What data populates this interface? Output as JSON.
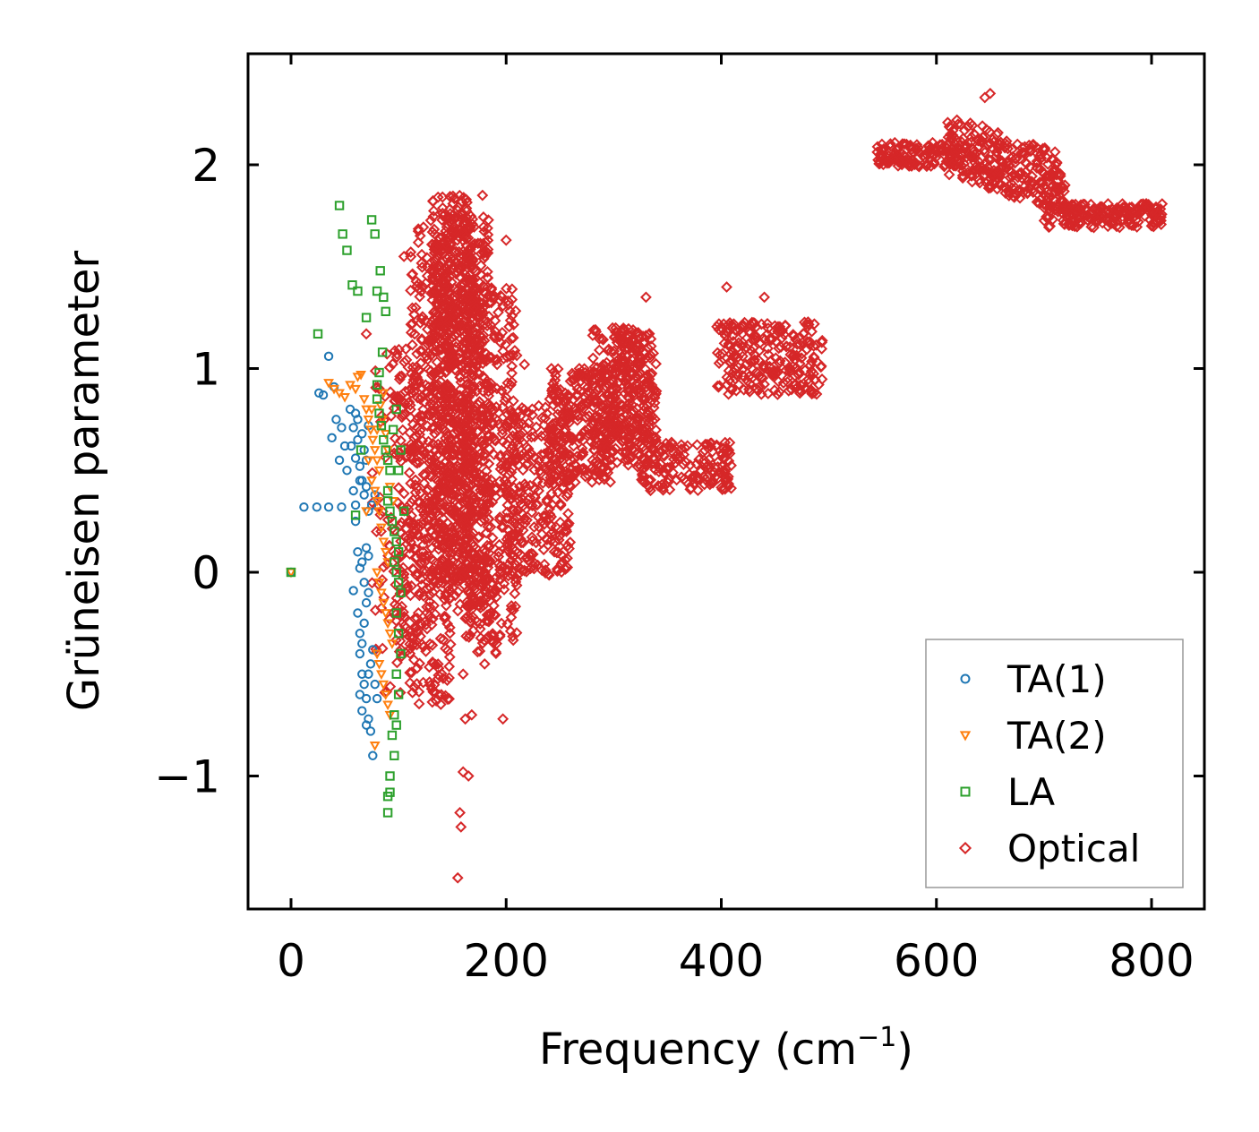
{
  "chart_data": {
    "type": "scatter",
    "title": "",
    "xlabel_main": "Frequency (cm",
    "xlabel_sup": "−1",
    "xlabel_end": ")",
    "ylabel": "Grüneisen parameter",
    "xlim": [
      -40,
      850
    ],
    "ylim": [
      -1.65,
      2.55
    ],
    "xticks": [
      0,
      200,
      400,
      600,
      800
    ],
    "xtick_labels": [
      "0",
      "200",
      "400",
      "600",
      "800"
    ],
    "yticks": [
      -1,
      0,
      1,
      2
    ],
    "ytick_labels": [
      "−1",
      "0",
      "1",
      "2"
    ],
    "legend_position": "lower-right",
    "grid": false,
    "series": [
      {
        "name": "TA(1)",
        "marker": "circle",
        "color": "#1f77b4",
        "points": [
          [
            0,
            0
          ],
          [
            12,
            0.32
          ],
          [
            24,
            0.32
          ],
          [
            35,
            0.32
          ],
          [
            47,
            0.32
          ],
          [
            60,
            0.33
          ],
          [
            26,
            0.88
          ],
          [
            30,
            0.87
          ],
          [
            35,
            1.06
          ],
          [
            40,
            0.91
          ],
          [
            38,
            0.66
          ],
          [
            42,
            0.75
          ],
          [
            45,
            0.55
          ],
          [
            47,
            0.71
          ],
          [
            50,
            0.62
          ],
          [
            52,
            0.5
          ],
          [
            55,
            0.8
          ],
          [
            58,
            0.71
          ],
          [
            60,
            0.78
          ],
          [
            62,
            0.65
          ],
          [
            64,
            0.52
          ],
          [
            66,
            0.45
          ],
          [
            68,
            0.38
          ],
          [
            70,
            0.42
          ],
          [
            72,
            0.3
          ],
          [
            58,
            0.4
          ],
          [
            60,
            0.25
          ],
          [
            62,
            0.1
          ],
          [
            64,
            0.02
          ],
          [
            66,
            0.05
          ],
          [
            68,
            -0.05
          ],
          [
            70,
            0.12
          ],
          [
            72,
            0.08
          ],
          [
            58,
            -0.09
          ],
          [
            62,
            -0.2
          ],
          [
            64,
            -0.3
          ],
          [
            66,
            -0.35
          ],
          [
            68,
            -0.25
          ],
          [
            70,
            -0.15
          ],
          [
            72,
            -0.1
          ],
          [
            64,
            -0.4
          ],
          [
            66,
            -0.5
          ],
          [
            68,
            -0.55
          ],
          [
            70,
            -0.62
          ],
          [
            72,
            -0.72
          ],
          [
            74,
            -0.78
          ],
          [
            76,
            -0.9
          ],
          [
            64,
            -0.6
          ],
          [
            66,
            -0.68
          ],
          [
            70,
            -0.75
          ],
          [
            72,
            -0.5
          ],
          [
            74,
            -0.45
          ],
          [
            76,
            -0.38
          ],
          [
            78,
            -0.55
          ],
          [
            80,
            -0.62
          ],
          [
            56,
            0.62
          ],
          [
            60,
            0.56
          ],
          [
            64,
            0.45
          ],
          [
            68,
            0.6
          ],
          [
            72,
            0.72
          ],
          [
            75,
            0.33
          ],
          [
            78,
            0.38
          ],
          [
            62,
            0.75
          ],
          [
            66,
            0.68
          ],
          [
            70,
            0.55
          ]
        ]
      },
      {
        "name": "TA(2)",
        "marker": "triangle-down",
        "color": "#ff7f0e",
        "points": [
          [
            0,
            0
          ],
          [
            35,
            0.93
          ],
          [
            40,
            0.9
          ],
          [
            45,
            0.88
          ],
          [
            50,
            0.86
          ],
          [
            55,
            0.92
          ],
          [
            60,
            0.9
          ],
          [
            62,
            0.96
          ],
          [
            65,
            0.97
          ],
          [
            68,
            0.85
          ],
          [
            70,
            0.8
          ],
          [
            72,
            0.75
          ],
          [
            74,
            0.7
          ],
          [
            76,
            0.65
          ],
          [
            78,
            0.6
          ],
          [
            80,
            0.55
          ],
          [
            82,
            0.5
          ],
          [
            75,
            0.45
          ],
          [
            78,
            0.4
          ],
          [
            80,
            0.35
          ],
          [
            82,
            0.3
          ],
          [
            84,
            0.22
          ],
          [
            86,
            0.15
          ],
          [
            88,
            0.1
          ],
          [
            90,
            0.05
          ],
          [
            80,
            0.0
          ],
          [
            82,
            -0.05
          ],
          [
            84,
            -0.1
          ],
          [
            86,
            -0.15
          ],
          [
            88,
            -0.2
          ],
          [
            90,
            -0.25
          ],
          [
            92,
            -0.3
          ],
          [
            94,
            -0.35
          ],
          [
            80,
            -0.4
          ],
          [
            82,
            -0.45
          ],
          [
            84,
            -0.5
          ],
          [
            86,
            -0.55
          ],
          [
            88,
            -0.6
          ],
          [
            90,
            -0.65
          ],
          [
            92,
            -0.7
          ],
          [
            78,
            -0.85
          ],
          [
            70,
            0.3
          ],
          [
            72,
            0.55
          ],
          [
            75,
            0.8
          ],
          [
            85,
            0.75
          ],
          [
            88,
            0.68
          ],
          [
            90,
            0.6
          ],
          [
            92,
            0.42
          ],
          [
            95,
            0.35
          ],
          [
            80,
            0.7
          ],
          [
            83,
            0.82
          ],
          [
            86,
            0.88
          ]
        ]
      },
      {
        "name": "LA",
        "marker": "square",
        "color": "#2ca02c",
        "points": [
          [
            0,
            0
          ],
          [
            25,
            1.17
          ],
          [
            45,
            1.8
          ],
          [
            48,
            1.66
          ],
          [
            52,
            1.58
          ],
          [
            57,
            1.41
          ],
          [
            62,
            1.38
          ],
          [
            70,
            1.25
          ],
          [
            75,
            1.73
          ],
          [
            78,
            1.66
          ],
          [
            80,
            1.38
          ],
          [
            83,
            1.48
          ],
          [
            86,
            1.35
          ],
          [
            88,
            1.28
          ],
          [
            85,
            1.08
          ],
          [
            82,
            0.98
          ],
          [
            80,
            0.92
          ],
          [
            80,
            0.85
          ],
          [
            82,
            0.78
          ],
          [
            84,
            0.72
          ],
          [
            86,
            0.65
          ],
          [
            88,
            0.6
          ],
          [
            90,
            0.55
          ],
          [
            92,
            0.5
          ],
          [
            90,
            0.4
          ],
          [
            90,
            0.35
          ],
          [
            92,
            0.3
          ],
          [
            94,
            0.25
          ],
          [
            96,
            0.2
          ],
          [
            98,
            0.15
          ],
          [
            100,
            0.1
          ],
          [
            96,
            0.05
          ],
          [
            98,
            0.0
          ],
          [
            100,
            -0.05
          ],
          [
            102,
            -0.1
          ],
          [
            98,
            -0.2
          ],
          [
            100,
            -0.3
          ],
          [
            102,
            -0.4
          ],
          [
            98,
            -0.5
          ],
          [
            100,
            -0.6
          ],
          [
            96,
            -0.7
          ],
          [
            98,
            -0.75
          ],
          [
            94,
            -0.8
          ],
          [
            96,
            -0.9
          ],
          [
            92,
            -1.0
          ],
          [
            90,
            -1.1
          ],
          [
            90,
            -1.18
          ],
          [
            92,
            -1.08
          ],
          [
            100,
            0.5
          ],
          [
            102,
            0.6
          ],
          [
            95,
            0.7
          ],
          [
            98,
            0.8
          ],
          [
            105,
            0.3
          ],
          [
            60,
            0.28
          ],
          [
            65,
            0.6
          ]
        ]
      },
      {
        "name": "Optical",
        "marker": "diamond",
        "color": "#d62728",
        "points": []
      }
    ],
    "optical_regions": [
      {
        "x_range": [
          75,
          115
        ],
        "y_center": 0.25,
        "y_spread": 0.85,
        "count": 90
      },
      {
        "x_range": [
          95,
          130
        ],
        "y_center": 0.35,
        "y_spread": 0.75,
        "count": 150
      },
      {
        "x_range": [
          110,
          150
        ],
        "y_center": 0.55,
        "y_spread": 1.2,
        "count": 350
      },
      {
        "x_range": [
          130,
          170
        ],
        "y_center": 0.9,
        "y_spread": 0.95,
        "count": 500
      },
      {
        "x_range": [
          140,
          185
        ],
        "y_center": 0.75,
        "y_spread": 1.0,
        "count": 450
      },
      {
        "x_range": [
          160,
          210
        ],
        "y_center": 0.5,
        "y_spread": 0.9,
        "count": 400
      },
      {
        "x_range": [
          200,
          260
        ],
        "y_center": 0.4,
        "y_spread": 0.42,
        "count": 300
      },
      {
        "x_range": [
          240,
          300
        ],
        "y_center": 0.72,
        "y_spread": 0.28,
        "count": 250
      },
      {
        "x_range": [
          280,
          335
        ],
        "y_center": 0.85,
        "y_spread": 0.35,
        "count": 220
      },
      {
        "x_range": [
          300,
          340
        ],
        "y_center": 0.9,
        "y_spread": 0.28,
        "count": 150
      },
      {
        "x_range": [
          325,
          410
        ],
        "y_center": 0.52,
        "y_spread": 0.12,
        "count": 160
      },
      {
        "x_range": [
          395,
          495
        ],
        "y_center": 1.05,
        "y_spread": 0.18,
        "count": 240
      },
      {
        "x_range": [
          545,
          620
        ],
        "y_center": 2.05,
        "y_spread": 0.06,
        "count": 140
      },
      {
        "x_range": [
          610,
          720
        ],
        "y_center": 2.0,
        "y_spread": 0.15,
        "count": 300
      },
      {
        "x_range": [
          700,
          810
        ],
        "y_center": 1.75,
        "y_spread": 0.06,
        "count": 180
      }
    ]
  }
}
